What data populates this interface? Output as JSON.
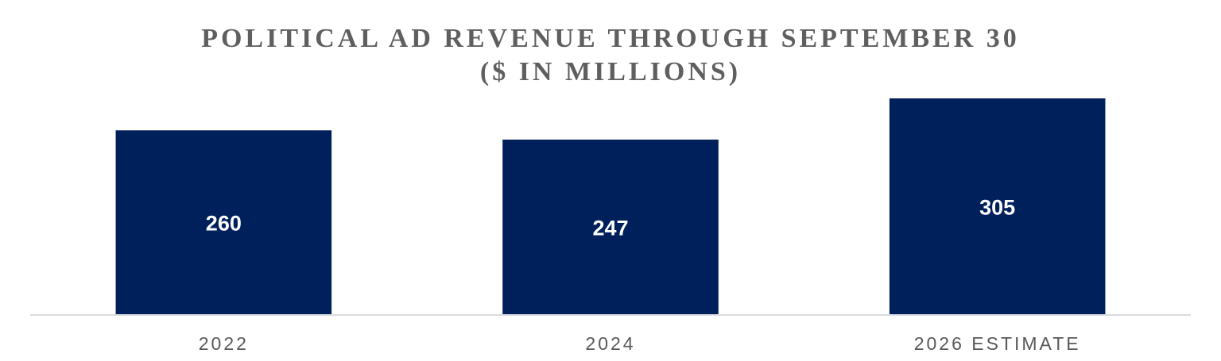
{
  "chart_data": {
    "type": "bar",
    "title": "POLITICAL AD REVENUE THROUGH SEPTEMBER 30",
    "subtitle": "($ IN MILLIONS)",
    "categories": [
      "2022",
      "2024",
      "2026 ESTIMATE"
    ],
    "values": [
      260,
      247,
      305
    ],
    "value_labels": [
      "260",
      "247",
      "305"
    ],
    "xlabel": "",
    "ylabel": "",
    "ylim": [
      0,
      340
    ],
    "grid": false,
    "legend": "none",
    "bar_color": "#00205b",
    "axis_color": "#d9dbe1"
  }
}
